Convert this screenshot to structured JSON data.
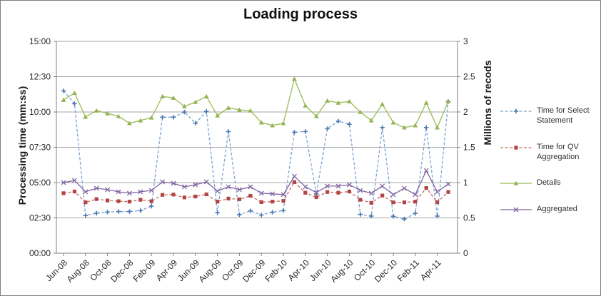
{
  "figure": {
    "title": "Loading process"
  },
  "axes": {
    "left": {
      "title": "Processing time (mm:ss)",
      "ticks": [
        "15:00",
        "12:30",
        "10:00",
        "07:30",
        "05:00",
        "02:30",
        "00:00"
      ]
    },
    "right": {
      "title": "Millions of recods",
      "ticks": [
        "3",
        "2.5",
        "2",
        "1.5",
        "1",
        "0.5",
        "0"
      ]
    },
    "x": {
      "tick_labels": [
        "Jun-08",
        "Aug-08",
        "Oct-08",
        "Dec-08",
        "Feb-09",
        "Apr-09",
        "Jun-09",
        "Aug-09",
        "Oct-09",
        "Dec-09",
        "Feb-10",
        "Apr-10",
        "Jun-10",
        "Aug-10",
        "Oct-10",
        "Dec-10",
        "Feb-11",
        "Apr-11"
      ]
    }
  },
  "legend": {
    "items": [
      {
        "label": "Time for Select Statement",
        "color": "#7ba3d0",
        "marker_color": "#4a78b2",
        "dash": true,
        "marker": "plus"
      },
      {
        "label": "Time for QV Aggregation",
        "color": "#c66a66",
        "marker_color": "#b04543",
        "dash": true,
        "marker": "square"
      },
      {
        "label": "Details",
        "color": "#9bbb59",
        "marker_color": "#94b353",
        "dash": false,
        "marker": "triangle"
      },
      {
        "label": "Aggregated",
        "color": "#8064a2",
        "marker_color": "#8064a2",
        "dash": false,
        "marker": "x"
      }
    ]
  },
  "chart_data": {
    "type": "line",
    "title": "Loading process",
    "x": [
      "Jun-08",
      "Jul-08",
      "Aug-08",
      "Sep-08",
      "Oct-08",
      "Nov-08",
      "Dec-08",
      "Jan-09",
      "Feb-09",
      "Mar-09",
      "Apr-09",
      "May-09",
      "Jun-09",
      "Jul-09",
      "Aug-09",
      "Sep-09",
      "Oct-09",
      "Nov-09",
      "Dec-09",
      "Jan-10",
      "Feb-10",
      "Mar-10",
      "Apr-10",
      "May-10",
      "Jun-10",
      "Jul-10",
      "Aug-10",
      "Sep-10",
      "Oct-10",
      "Nov-10",
      "Dec-10",
      "Jan-11",
      "Feb-11",
      "Mar-11",
      "Apr-11",
      "May-11"
    ],
    "x_tick_interval": 2,
    "left_axis": {
      "label": "Processing time (mm:ss)",
      "unit": "seconds",
      "range": [
        0,
        900
      ],
      "tick_step": 150
    },
    "right_axis": {
      "label": "Millions of recods",
      "unit": "millions of records",
      "range": [
        0,
        3
      ],
      "tick_step": 0.5
    },
    "grid": true,
    "legend_position": "right",
    "series": [
      {
        "name": "Time for Select Statement",
        "axis": "left",
        "unit": "seconds (mm:ss)",
        "values": [
          690,
          635,
          160,
          170,
          175,
          177,
          177,
          181,
          200,
          578,
          578,
          600,
          552,
          602,
          172,
          517,
          164,
          180,
          162,
          174,
          181,
          514,
          517,
          252,
          529,
          561,
          548,
          165,
          158,
          534,
          157,
          145,
          169,
          534,
          158,
          645
        ]
      },
      {
        "name": "Time for QV Aggregation",
        "axis": "left",
        "unit": "seconds (mm:ss)",
        "values": [
          255,
          262,
          216,
          230,
          224,
          221,
          219,
          227,
          221,
          248,
          249,
          237,
          241,
          250,
          219,
          232,
          229,
          244,
          217,
          219,
          222,
          302,
          257,
          238,
          260,
          257,
          262,
          227,
          214,
          245,
          216,
          216,
          219,
          277,
          217,
          260
        ]
      },
      {
        "name": "Details",
        "axis": "right",
        "unit": "millions of records",
        "values": [
          2.17,
          2.27,
          1.93,
          2.02,
          1.98,
          1.94,
          1.84,
          1.88,
          1.92,
          2.22,
          2.2,
          2.08,
          2.14,
          2.22,
          1.95,
          2.06,
          2.03,
          2.02,
          1.85,
          1.81,
          1.84,
          2.47,
          2.09,
          1.94,
          2.16,
          2.13,
          2.15,
          2.0,
          1.88,
          2.11,
          1.85,
          1.78,
          1.81,
          2.13,
          1.78,
          2.15
        ]
      },
      {
        "name": "Aggregated",
        "axis": "right",
        "unit": "millions of records",
        "values": [
          1.0,
          1.03,
          0.87,
          0.92,
          0.9,
          0.87,
          0.85,
          0.87,
          0.89,
          1.01,
          0.99,
          0.94,
          0.97,
          1.01,
          0.88,
          0.94,
          0.9,
          0.94,
          0.85,
          0.84,
          0.83,
          1.09,
          0.94,
          0.86,
          0.95,
          0.95,
          0.97,
          0.89,
          0.85,
          0.95,
          0.83,
          0.92,
          0.83,
          1.17,
          0.87,
          0.98
        ]
      }
    ]
  }
}
